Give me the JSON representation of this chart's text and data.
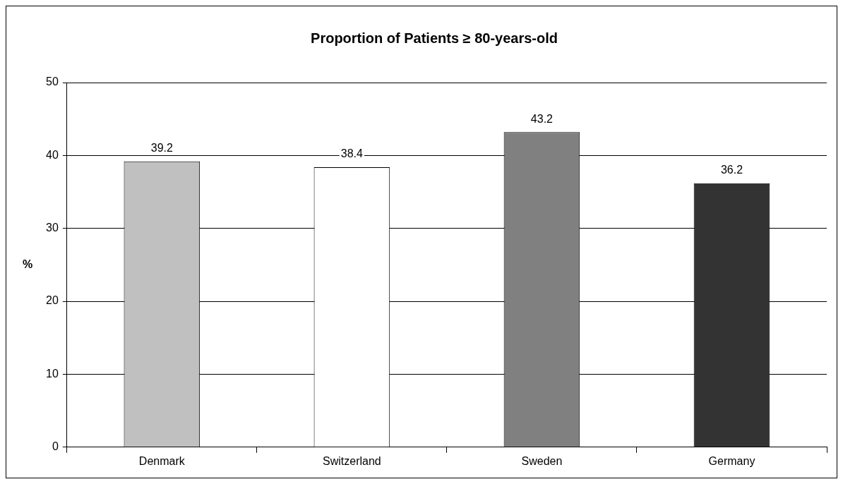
{
  "chart_data": {
    "type": "bar",
    "title": "Proportion of Patients ≥ 80-years-old",
    "ylabel": "%",
    "categories": [
      "Denmark",
      "Switzerland",
      "Sweden",
      "Germany"
    ],
    "values": [
      39.2,
      38.4,
      43.2,
      36.2
    ],
    "colors": [
      "#c0c0c0",
      "#ffffff",
      "#808080",
      "#333333"
    ],
    "ylim": [
      0,
      50
    ],
    "yticks": [
      0,
      10,
      20,
      30,
      40,
      50
    ],
    "grid": "y",
    "legend": false,
    "data_labels": true
  }
}
